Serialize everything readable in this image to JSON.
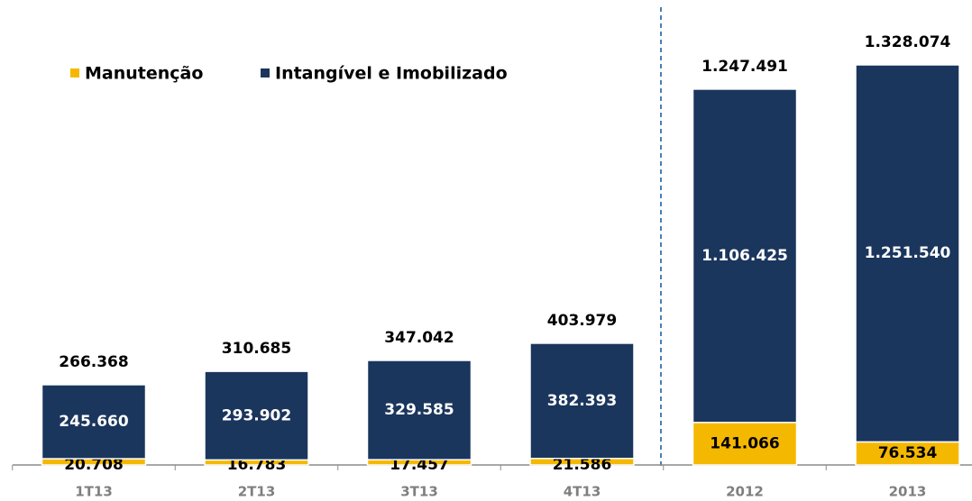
{
  "chart_data": {
    "type": "stacked_bar",
    "categories": [
      "1T13",
      "2T13",
      "3T13",
      "4T13",
      "2012",
      "2013"
    ],
    "series": [
      {
        "name": "Manutenção",
        "color": "#f5b800",
        "values": [
          20708,
          16783,
          17457,
          21586,
          141066,
          76534
        ],
        "value_labels": [
          "20.708",
          "16.783",
          "17.457",
          "21.586",
          "141.066",
          "76.534"
        ]
      },
      {
        "name": "Intangível e Imobilizado",
        "color": "#1b365d",
        "values": [
          245660,
          293902,
          329585,
          382393,
          1106425,
          1251540
        ],
        "value_labels": [
          "245.660",
          "293.902",
          "329.585",
          "382.393",
          "1.106.425",
          "1.251.540"
        ]
      }
    ],
    "totals": {
      "values": [
        266368,
        310685,
        347042,
        403979,
        1247491,
        1328074
      ],
      "value_labels": [
        "266.368",
        "310.685",
        "347.042",
        "403.979",
        "1.247.491",
        "1.328.074"
      ]
    }
  }
}
